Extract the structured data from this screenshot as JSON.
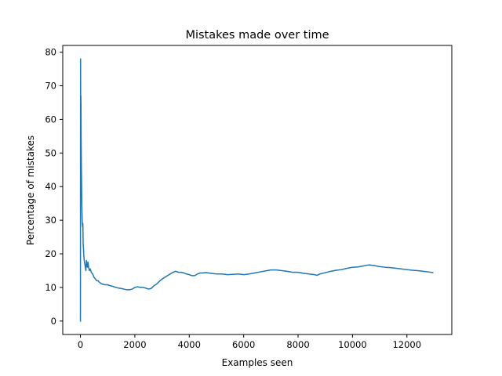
{
  "chart_data": {
    "type": "line",
    "title": "Mistakes made over time",
    "xlabel": "Examples seen",
    "ylabel": "Percentage of mistakes",
    "xlim": [
      -650,
      13650
    ],
    "ylim": [
      -4,
      82
    ],
    "xticks": [
      0,
      2000,
      4000,
      6000,
      8000,
      10000,
      12000
    ],
    "yticks": [
      0,
      10,
      20,
      30,
      40,
      50,
      60,
      70,
      80
    ],
    "grid": false,
    "legend": "none",
    "series": [
      {
        "color": "#1f77b4",
        "x": [
          0,
          5,
          10,
          15,
          20,
          25,
          30,
          35,
          40,
          45,
          50,
          55,
          60,
          70,
          80,
          90,
          100,
          110,
          120,
          140,
          160,
          180,
          200,
          220,
          240,
          260,
          280,
          300,
          330,
          360,
          400,
          450,
          500,
          550,
          600,
          650,
          700,
          800,
          900,
          1000,
          1100,
          1200,
          1300,
          1400,
          1500,
          1600,
          1700,
          1800,
          1900,
          2000,
          2100,
          2200,
          2300,
          2400,
          2500,
          2600,
          2700,
          2800,
          2900,
          3000,
          3100,
          3200,
          3300,
          3400,
          3500,
          3600,
          3700,
          3800,
          3900,
          4000,
          4100,
          4200,
          4300,
          4400,
          4500,
          4600,
          4800,
          5000,
          5200,
          5400,
          5600,
          5800,
          6000,
          6200,
          6400,
          6600,
          6800,
          7000,
          7200,
          7400,
          7600,
          7800,
          8000,
          8200,
          8400,
          8600,
          8700,
          8800,
          9000,
          9200,
          9400,
          9600,
          9800,
          10000,
          10200,
          10400,
          10600,
          10800,
          11000,
          11200,
          11400,
          11600,
          11800,
          12000,
          12200,
          12400,
          12600,
          12800,
          12950
        ],
        "values": [
          0,
          78,
          60,
          67,
          64,
          55,
          50,
          45,
          42,
          38,
          35,
          33,
          31,
          29,
          28,
          29,
          23,
          22,
          20,
          18,
          17,
          16,
          15,
          18,
          17,
          16,
          17.5,
          16,
          15,
          15.5,
          14.5,
          14,
          13,
          12.5,
          12,
          12,
          11.5,
          11,
          10.8,
          10.8,
          10.5,
          10.3,
          10.0,
          9.8,
          9.7,
          9.5,
          9.3,
          9.3,
          9.5,
          10.0,
          10.2,
          10.0,
          10.0,
          9.8,
          9.5,
          9.7,
          10.5,
          11.0,
          11.8,
          12.5,
          13.0,
          13.5,
          14.0,
          14.5,
          14.8,
          14.5,
          14.5,
          14.3,
          14.0,
          13.8,
          13.5,
          13.5,
          14.0,
          14.3,
          14.3,
          14.4,
          14.2,
          14.0,
          14.0,
          13.8,
          13.9,
          14.0,
          13.8,
          14.0,
          14.3,
          14.6,
          14.9,
          15.2,
          15.2,
          15.0,
          14.8,
          14.5,
          14.5,
          14.2,
          14.0,
          13.8,
          13.6,
          14.0,
          14.4,
          14.8,
          15.1,
          15.3,
          15.7,
          16.0,
          16.1,
          16.4,
          16.7,
          16.5,
          16.2,
          16.0,
          15.9,
          15.7,
          15.5,
          15.3,
          15.1,
          15.0,
          14.8,
          14.6,
          14.4
        ]
      }
    ]
  }
}
